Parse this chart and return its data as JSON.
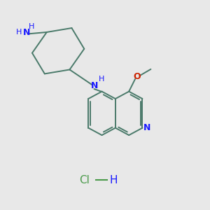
{
  "background_color": "#e8e8e8",
  "bond_color": "#4a7a6a",
  "N_color": "#1a1aff",
  "O_color": "#cc2200",
  "HCl_color": "#4a9a4a",
  "figsize": [
    3.0,
    3.0
  ],
  "dpi": 100,
  "xlim": [
    0,
    10
  ],
  "ylim": [
    0,
    10
  ],
  "lw": 1.4
}
